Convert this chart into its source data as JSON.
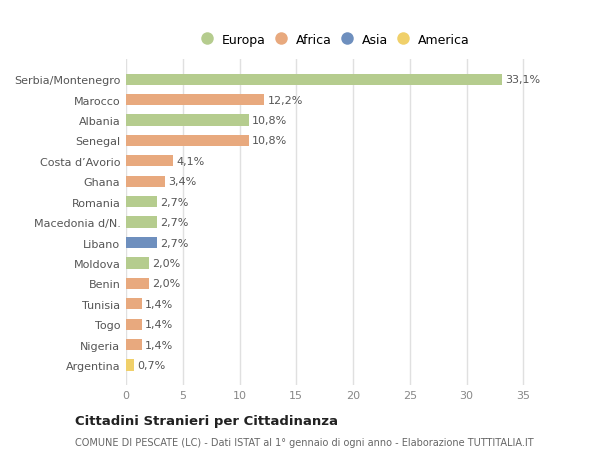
{
  "categories": [
    "Serbia/Montenegro",
    "Marocco",
    "Albania",
    "Senegal",
    "Costa d’Avorio",
    "Ghana",
    "Romania",
    "Macedonia d/N.",
    "Libano",
    "Moldova",
    "Benin",
    "Tunisia",
    "Togo",
    "Nigeria",
    "Argentina"
  ],
  "values": [
    33.1,
    12.2,
    10.8,
    10.8,
    4.1,
    3.4,
    2.7,
    2.7,
    2.7,
    2.0,
    2.0,
    1.4,
    1.4,
    1.4,
    0.7
  ],
  "labels": [
    "33,1%",
    "12,2%",
    "10,8%",
    "10,8%",
    "4,1%",
    "3,4%",
    "2,7%",
    "2,7%",
    "2,7%",
    "2,0%",
    "2,0%",
    "1,4%",
    "1,4%",
    "1,4%",
    "0,7%"
  ],
  "continents": [
    "Europa",
    "Africa",
    "Europa",
    "Africa",
    "Africa",
    "Africa",
    "Europa",
    "Europa",
    "Asia",
    "Europa",
    "Africa",
    "Africa",
    "Africa",
    "Africa",
    "America"
  ],
  "continent_colors": {
    "Europa": "#b5cc8e",
    "Africa": "#e8a97e",
    "Asia": "#6e8fbe",
    "America": "#f0d06a"
  },
  "legend_order": [
    "Europa",
    "Africa",
    "Asia",
    "America"
  ],
  "xlim": [
    0,
    37
  ],
  "xticks": [
    0,
    5,
    10,
    15,
    20,
    25,
    30,
    35
  ],
  "title": "Cittadini Stranieri per Cittadinanza",
  "subtitle": "COMUNE DI PESCATE (LC) - Dati ISTAT al 1° gennaio di ogni anno - Elaborazione TUTTITALIA.IT",
  "bg_color": "#ffffff",
  "plot_bg_color": "#ffffff",
  "grid_color": "#e0e0e0",
  "bar_height": 0.55,
  "label_fontsize": 8,
  "tick_fontsize": 8
}
